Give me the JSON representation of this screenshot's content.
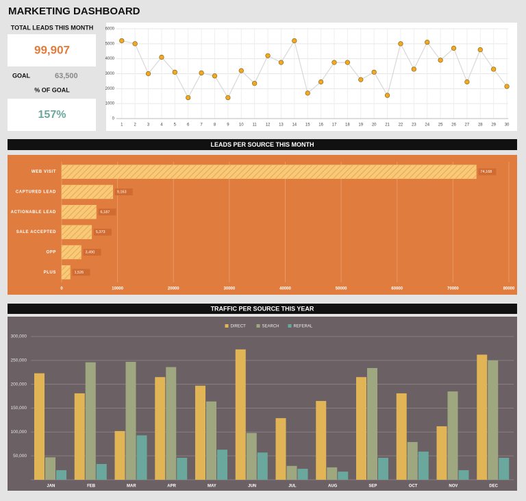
{
  "title": "MARKETING DASHBOARD",
  "kpis": {
    "total_label": "TOTAL LEADS THIS MONTH",
    "total_value": "99,907",
    "goal_label": "GOAL",
    "goal_value": "63,500",
    "pct_label": "% OF GOAL",
    "pct_value": "157%"
  },
  "chart_data": [
    {
      "type": "line",
      "color": "#d8d8d8",
      "marker_color": "#f2a922",
      "x": [
        1,
        2,
        3,
        4,
        5,
        6,
        7,
        8,
        9,
        10,
        11,
        12,
        13,
        14,
        15,
        16,
        17,
        18,
        19,
        20,
        21,
        22,
        23,
        24,
        25,
        26,
        27,
        28,
        29,
        30
      ],
      "values": [
        5200,
        5000,
        3000,
        4100,
        3100,
        1400,
        3050,
        2850,
        1400,
        3200,
        2350,
        4200,
        3750,
        5200,
        1700,
        2450,
        3750,
        3750,
        2600,
        3100,
        1550,
        5000,
        3300,
        5100,
        3900,
        4700,
        2450,
        4600,
        3300,
        2150
      ],
      "xlim": [
        0.6,
        30.1
      ],
      "xticks": [
        1,
        2,
        3,
        4,
        5,
        6,
        7,
        8,
        9,
        10,
        11,
        12,
        13,
        14,
        15,
        16,
        17,
        18,
        19,
        20,
        21,
        22,
        23,
        24,
        25,
        26,
        27,
        28,
        29,
        30
      ],
      "ylim": [
        0,
        6000
      ],
      "yticks": [
        0,
        1000,
        2000,
        3000,
        4000,
        5000,
        6000
      ],
      "grid": true
    },
    {
      "type": "hbar",
      "title": "LEADS PER SOURCE THIS MONTH",
      "color": "#f8c978",
      "categories": [
        "WEB VISIT",
        "CAPTURED LEAD",
        "ACTIONABLE LEAD",
        "SALE ACCEPTED",
        "OPP",
        "PLUS"
      ],
      "values": [
        74168,
        9163,
        6187,
        5373,
        3490,
        1526
      ],
      "value_labels": [
        "74,168",
        "9,163",
        "6,187",
        "5,373",
        "3,490",
        "1,526"
      ],
      "xlim": [
        0,
        80000
      ],
      "xticks": [
        0,
        10000,
        20000,
        30000,
        40000,
        50000,
        60000,
        70000,
        80000
      ],
      "grid": true
    },
    {
      "type": "bar",
      "title": "TRAFFIC PER SOURCE THIS YEAR",
      "legend": "top",
      "categories": [
        "JAN",
        "FEB",
        "MAR",
        "APR",
        "MAY",
        "JUN",
        "JUL",
        "AUG",
        "SEP",
        "OCT",
        "NOV",
        "DEC"
      ],
      "series": [
        {
          "name": "DIRECT",
          "color": "#e1b455",
          "values": [
            223000,
            181000,
            102000,
            215000,
            197000,
            273000,
            129000,
            165000,
            215000,
            181000,
            112000,
            262000
          ]
        },
        {
          "name": "SEARCH",
          "color": "#9ea77f",
          "values": [
            47000,
            246000,
            247000,
            236000,
            164000,
            98000,
            29000,
            26000,
            234000,
            79000,
            185000,
            250000
          ]
        },
        {
          "name": "REFERAL",
          "color": "#6aa89d",
          "values": [
            20000,
            33000,
            93000,
            46000,
            63000,
            57000,
            23000,
            17000,
            46000,
            59000,
            20000,
            46000
          ]
        }
      ],
      "ylim": [
        0,
        300000
      ],
      "yticks": [
        {
          "value": 50000,
          "label": "50,000"
        },
        {
          "value": 100000,
          "label": "100,000"
        },
        {
          "value": 150000,
          "label": "150,000"
        },
        {
          "value": 200000,
          "label": "200,000"
        },
        {
          "value": 250000,
          "label": "250,000"
        },
        {
          "value": 300000,
          "label": "300,000"
        }
      ],
      "grid": true
    }
  ]
}
